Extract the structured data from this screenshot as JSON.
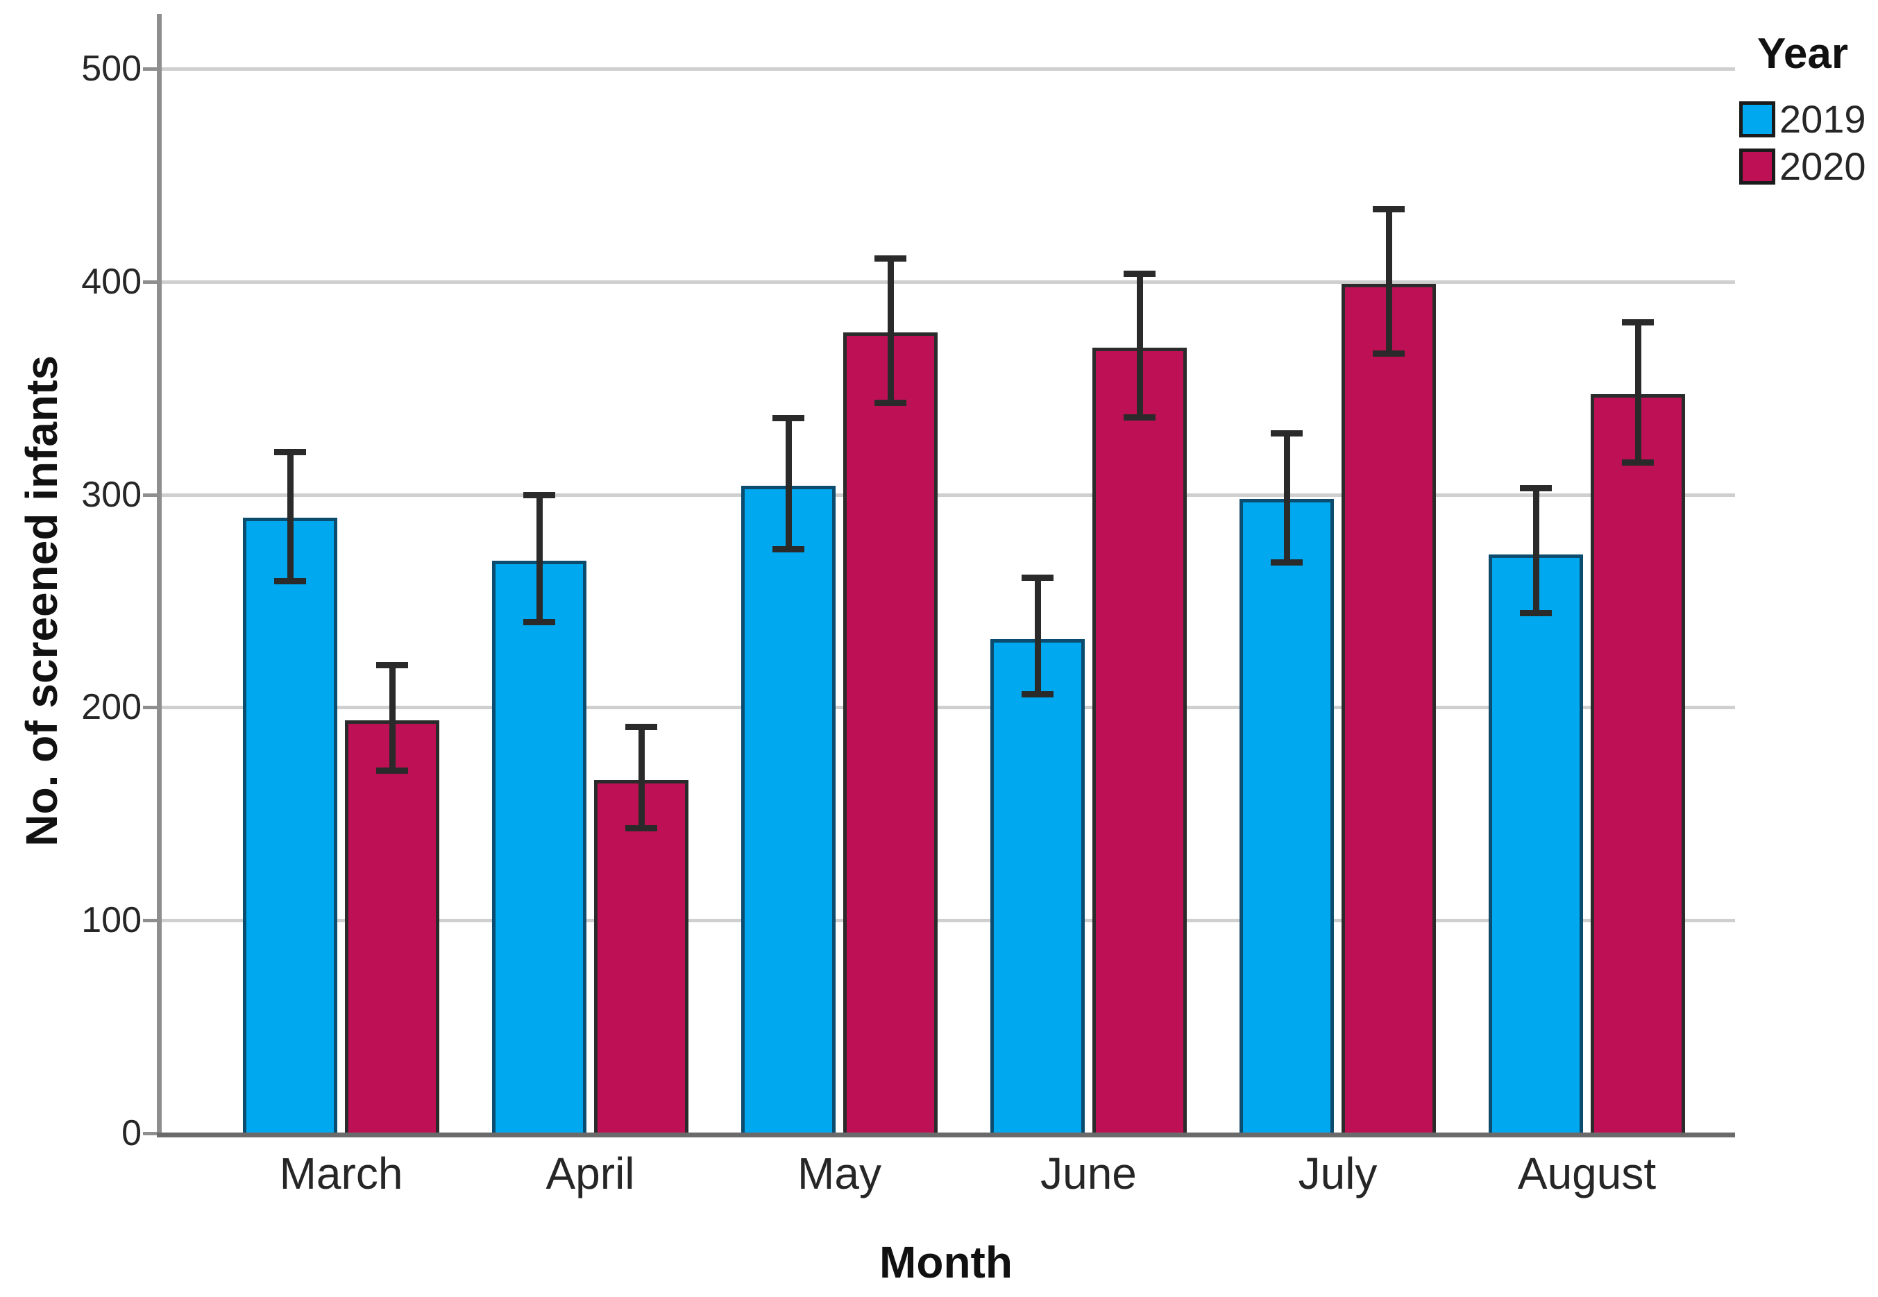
{
  "chart_data": {
    "type": "bar",
    "title": "",
    "xlabel": "Month",
    "ylabel": "No. of screened infants",
    "categories": [
      "March",
      "April",
      "May",
      "June",
      "July",
      "August"
    ],
    "series": [
      {
        "name": "2019",
        "color": "#00A9EF",
        "border_color": "#0C4C6E",
        "values": [
          289,
          269,
          304,
          232,
          298,
          272
        ],
        "ci_low": [
          259,
          240,
          274,
          206,
          268,
          244
        ],
        "ci_high": [
          320,
          300,
          336,
          261,
          329,
          303
        ]
      },
      {
        "name": "2020",
        "color": "#BE1155",
        "border_color": "#2B2B2B",
        "values": [
          194,
          166,
          376,
          369,
          399,
          347
        ],
        "ci_low": [
          170,
          143,
          343,
          336,
          366,
          315
        ],
        "ci_high": [
          220,
          191,
          411,
          404,
          434,
          381
        ]
      }
    ],
    "ylim": [
      0,
      500
    ],
    "yticks": [
      0,
      100,
      200,
      300,
      400,
      500
    ],
    "grid": "horizontal",
    "error_bars": "95% CI",
    "legend": {
      "title": "Year",
      "position": "top-right"
    }
  },
  "colors": {
    "background": "#FFFFFF",
    "gridline": "#CFCFCF",
    "axis_line": "#8E8E8E",
    "baseline": "#6A6A6A",
    "error_bar": "#2A2A2A",
    "text": "#262626"
  }
}
